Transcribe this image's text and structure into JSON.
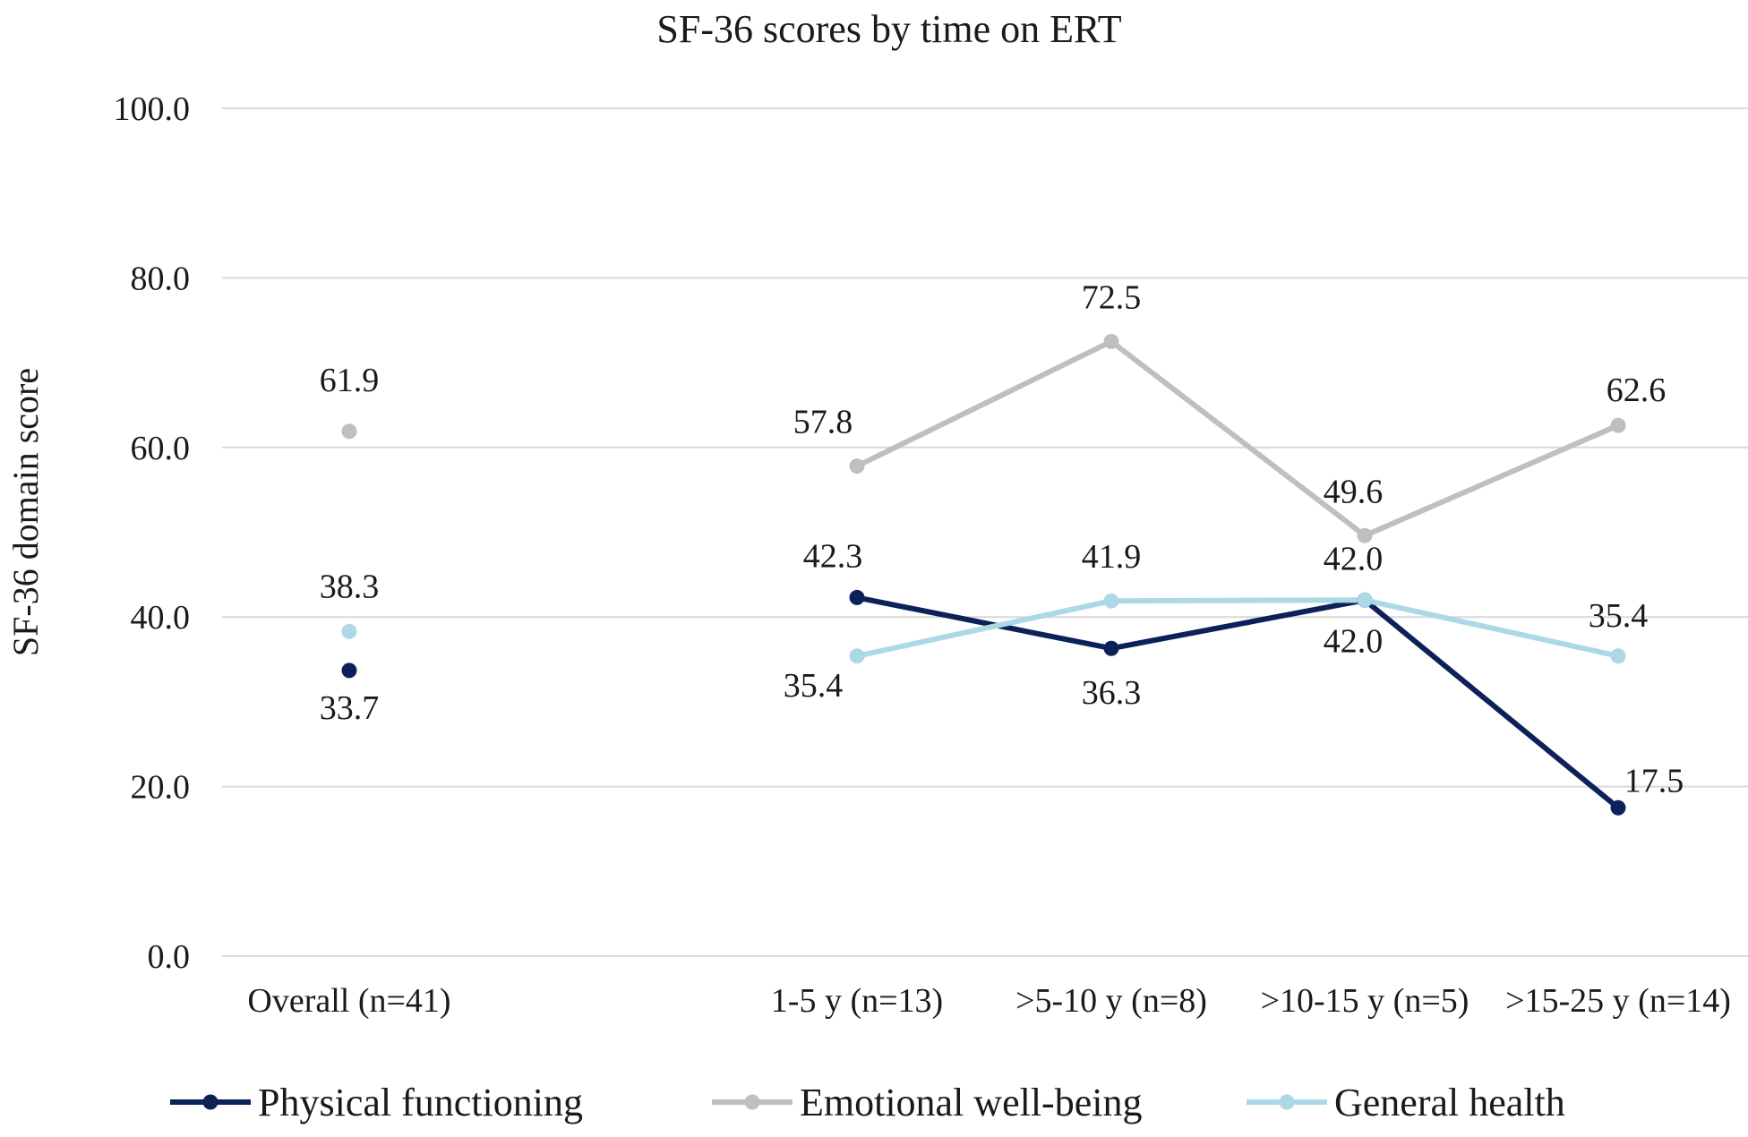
{
  "chart_data": {
    "type": "line",
    "title": "SF-36 scores by time on ERT",
    "ylabel": "SF-36 domain score",
    "xlabel": "",
    "ylim": [
      0,
      100
    ],
    "y_ticks": [
      0,
      20,
      40,
      60,
      80,
      100
    ],
    "y_tick_labels": [
      "0.0",
      "20.0",
      "40.0",
      "60.0",
      "80.0",
      "100.0"
    ],
    "grid": true,
    "legend_position": "bottom",
    "categories": [
      "Overall (n=41)",
      "",
      "1-5 y (n=13)",
      ">5-10 y (n=8)",
      ">10-15 y (n=5)",
      ">15-25 y (n=14)"
    ],
    "series": [
      {
        "name": "Physical functioning",
        "color": "#0d2159",
        "values": [
          33.7,
          null,
          42.3,
          36.3,
          42.0,
          17.5
        ],
        "labels": [
          "33.7",
          "",
          "42.3",
          "36.3",
          "42.0",
          "17.5"
        ]
      },
      {
        "name": "Emotional well-being",
        "color": "#bfbfbf",
        "values": [
          61.9,
          null,
          57.8,
          72.5,
          49.6,
          62.6
        ],
        "labels": [
          "61.9",
          "",
          "57.8",
          "72.5",
          "49.6",
          "62.6"
        ]
      },
      {
        "name": "General health",
        "color": "#add8e6",
        "values": [
          38.3,
          null,
          35.4,
          41.9,
          42.0,
          35.4
        ],
        "labels": [
          "38.3",
          "",
          "35.4",
          "41.9",
          "42.0",
          "35.4"
        ]
      }
    ]
  }
}
